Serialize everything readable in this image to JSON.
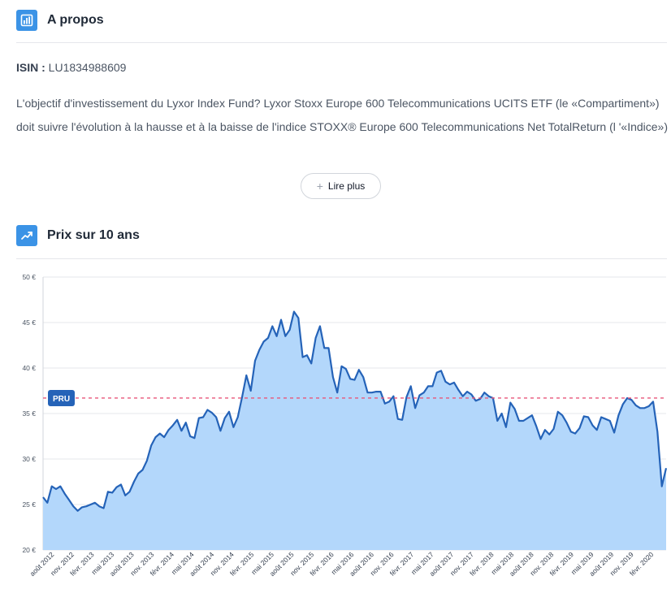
{
  "about": {
    "title": "A propos",
    "isin_label": "ISIN :",
    "isin_value": "LU1834988609",
    "description": "L'objectif d'investissement du Lyxor Index Fund? Lyxor Stoxx Europe 600 Telecommunications UCITS ETF (le «Compartiment») doit suivre l'évolution à la hausse et à la baisse de l'indice STOXX® Europe 600 Telecommunications Net TotalReturn (l '«Indice»)",
    "read_more": "Lire plus",
    "icon": "bar-chart-icon"
  },
  "price": {
    "title": "Prix sur 10 ans",
    "icon": "trend-up-icon"
  },
  "chart_data": {
    "type": "area",
    "ylim": [
      20,
      50
    ],
    "yticks": [
      50,
      45,
      40,
      35,
      30,
      25,
      20
    ],
    "ytick_labels": [
      "50 €",
      "45 €",
      "40 €",
      "35 €",
      "30 €",
      "25 €",
      "20 €"
    ],
    "xtick_labels": [
      "août 2012",
      "nov. 2012",
      "févr. 2013",
      "mai 2013",
      "août 2013",
      "nov. 2013",
      "févr. 2014",
      "mai 2014",
      "août 2014",
      "nov. 2014",
      "févr. 2015",
      "mai 2015",
      "août 2015",
      "nov. 2015",
      "févr. 2016",
      "mai 2016",
      "août 2016",
      "nov. 2016",
      "févr. 2017",
      "mai 2017",
      "août 2017",
      "nov. 2017",
      "févr. 2018",
      "mai 2018",
      "août 2018",
      "nov. 2018",
      "févr. 2019",
      "mai 2019",
      "août 2019",
      "nov. 2019",
      "févr. 2020"
    ],
    "reference_line": {
      "label": "PRU",
      "value": 36.7
    },
    "colors": {
      "line": "#2563b8",
      "fill": "#b3d7fb",
      "reference": "#e8577a",
      "badge": "#2563b8"
    },
    "values": [
      25.8,
      25.2,
      27.0,
      26.7,
      27.0,
      26.2,
      25.5,
      24.8,
      24.3,
      24.7,
      24.8,
      25.0,
      25.2,
      24.8,
      24.6,
      26.4,
      26.3,
      26.9,
      27.2,
      26.0,
      26.4,
      27.5,
      28.4,
      28.8,
      29.8,
      31.5,
      32.4,
      32.8,
      32.4,
      33.2,
      33.7,
      34.3,
      33.1,
      34.0,
      32.5,
      32.3,
      34.5,
      34.6,
      35.4,
      35.1,
      34.6,
      33.1,
      34.5,
      35.2,
      33.5,
      34.6,
      36.8,
      39.2,
      37.5,
      40.8,
      42.0,
      42.9,
      43.3,
      44.6,
      43.5,
      45.3,
      43.5,
      44.2,
      46.2,
      45.5,
      41.2,
      41.4,
      40.5,
      43.3,
      44.6,
      42.2,
      42.2,
      39.0,
      37.3,
      40.2,
      39.9,
      38.8,
      38.7,
      39.8,
      39.0,
      37.3,
      37.3,
      37.4,
      37.4,
      36.1,
      36.3,
      36.9,
      34.4,
      34.3,
      36.8,
      38.0,
      35.6,
      37.0,
      37.3,
      38.0,
      38.0,
      39.5,
      39.7,
      38.5,
      38.2,
      38.4,
      37.6,
      36.9,
      37.4,
      37.1,
      36.4,
      36.6,
      37.3,
      36.9,
      36.7,
      34.2,
      35.0,
      33.5,
      36.2,
      35.5,
      34.2,
      34.2,
      34.5,
      34.8,
      33.6,
      32.2,
      33.2,
      32.7,
      33.3,
      35.2,
      34.8,
      34.0,
      33.0,
      32.8,
      33.4,
      34.7,
      34.6,
      33.7,
      33.2,
      34.6,
      34.4,
      34.2,
      32.9,
      34.8,
      36.0,
      36.7,
      36.5,
      35.9,
      35.6,
      35.6,
      35.8,
      36.3,
      33.0,
      27.0,
      29.0
    ]
  }
}
